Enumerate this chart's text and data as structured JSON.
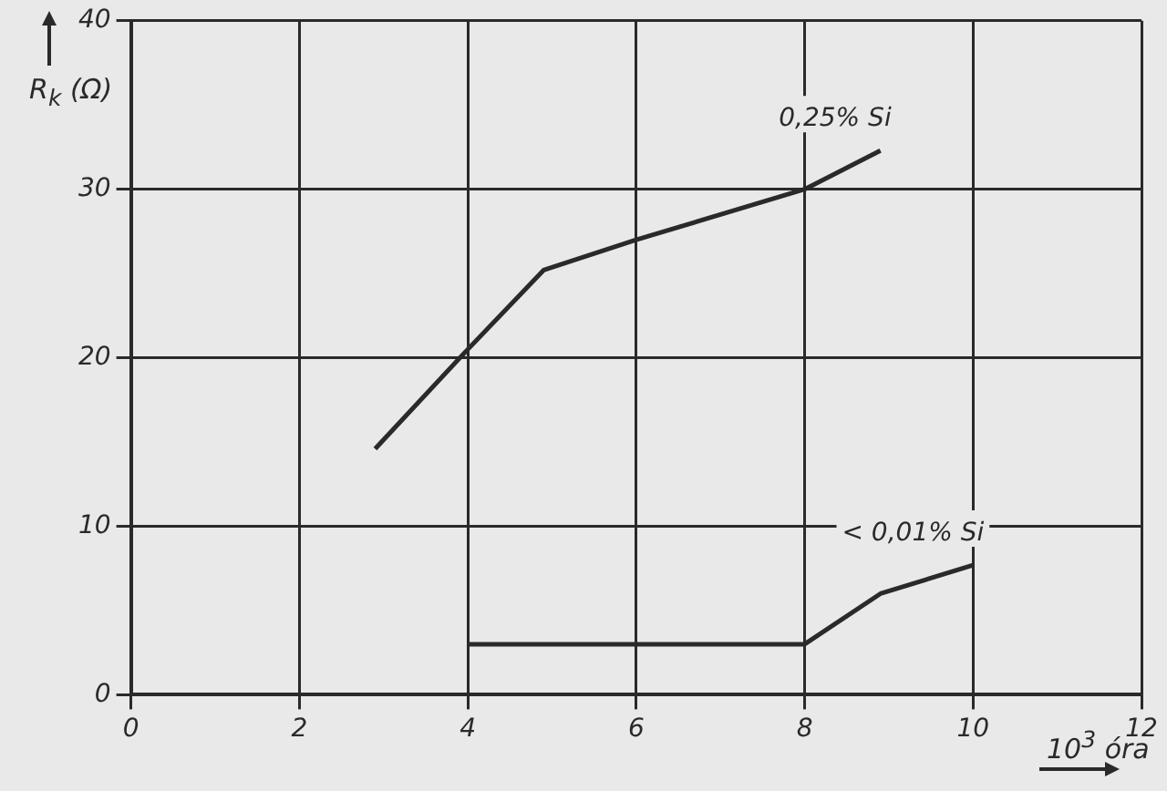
{
  "chart_data": {
    "type": "line",
    "xlabel": "10$^{3}$ óra",
    "ylabel": "R$_{k}$ (Ω)",
    "xlim": [
      0,
      12
    ],
    "xticks": [
      0,
      2,
      4,
      6,
      8,
      10,
      12
    ],
    "ylim": [
      0,
      40
    ],
    "yticks": [
      0,
      10,
      20,
      30,
      40
    ],
    "grid": true,
    "legend": false,
    "marker": "none",
    "line_style": "solid",
    "series": [
      {
        "name": "0,25% Si",
        "color": "#2a2a2a",
        "x": [
          2.9,
          4,
          4.9,
          6,
          8,
          8.9
        ],
        "values": [
          14.6,
          20.5,
          25.2,
          27,
          30,
          32.3
        ]
      },
      {
        "name": "< 0,01% Si",
        "color": "#2a2a2a",
        "x": [
          4,
          8,
          8.9,
          10
        ],
        "values": [
          3,
          3,
          6,
          7.7
        ]
      }
    ]
  }
}
